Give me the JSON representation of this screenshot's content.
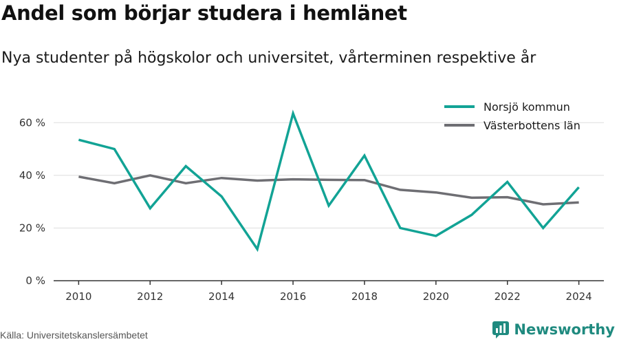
{
  "colors": {
    "norsjo": "#12a395",
    "vasterbotten": "#6e6e73",
    "brand": "#1f8a7f",
    "grid": "#dddddd"
  },
  "chart_data": {
    "type": "line",
    "title": "Andel som börjar studera i hemlänet",
    "subtitle": "Nya studenter på högskolor och universitet, vårterminen respektive år",
    "x": [
      2010,
      2011,
      2012,
      2013,
      2014,
      2015,
      2016,
      2017,
      2018,
      2019,
      2020,
      2021,
      2022,
      2023,
      2024
    ],
    "x_ticks": [
      "2010",
      "2012",
      "2014",
      "2016",
      "2018",
      "2020",
      "2022",
      "2024"
    ],
    "y_ticks": [
      "0 %",
      "20 %",
      "40 %",
      "60 %"
    ],
    "ylim": [
      0,
      70
    ],
    "grid": true,
    "legend_position": "top-right",
    "series": [
      {
        "name": "Norsjö kommun",
        "values": [
          53.5,
          50,
          27.5,
          43.5,
          32,
          12,
          63.5,
          28.5,
          47.5,
          20,
          17,
          25,
          37.5,
          20,
          35.5
        ]
      },
      {
        "name": "Västerbottens län",
        "values": [
          39.5,
          37,
          40,
          37,
          39,
          38,
          38.5,
          38.3,
          38.2,
          34.5,
          33.5,
          31.5,
          31.7,
          29,
          29.7
        ]
      }
    ]
  },
  "footer": {
    "source": "Källa: Universitetskanslersämbetet",
    "brand": "Newsworthy"
  },
  "icons": {
    "brand_logo": "newsworthy-logo-icon"
  }
}
